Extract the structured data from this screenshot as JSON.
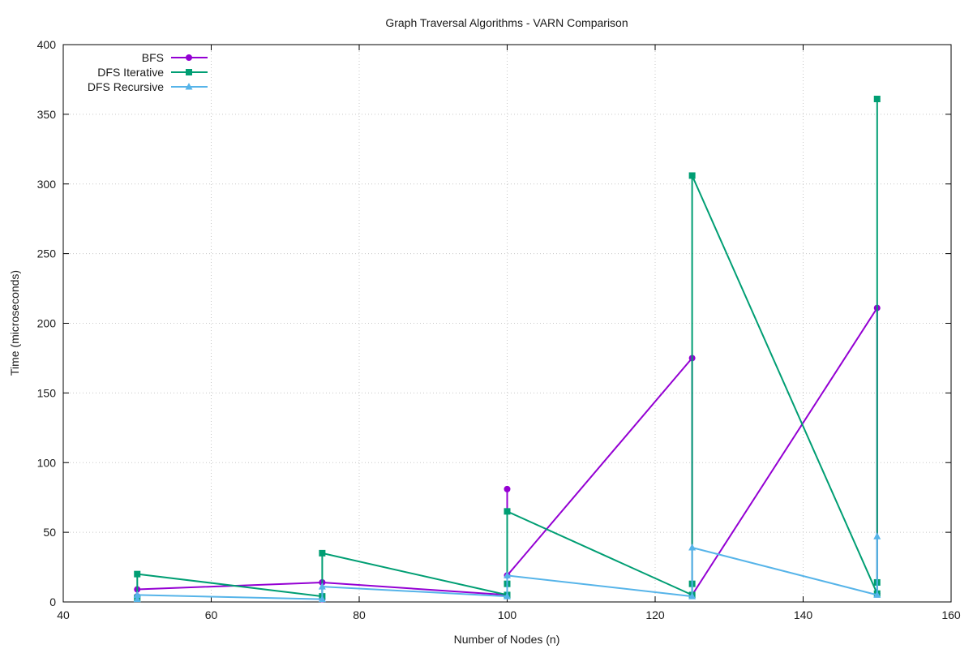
{
  "chart_data": {
    "type": "line",
    "title": "Graph Traversal Algorithms - VARN Comparison",
    "xlabel": "Number of Nodes (n)",
    "ylabel": "Time (microseconds)",
    "xlim": [
      40,
      160
    ],
    "ylim": [
      0,
      400
    ],
    "xticks": [
      40,
      60,
      80,
      100,
      120,
      140,
      160
    ],
    "yticks": [
      0,
      50,
      100,
      150,
      200,
      250,
      300,
      350,
      400
    ],
    "grid": true,
    "legend_position": "top-left",
    "series": [
      {
        "name": "BFS",
        "color": "#9400d3",
        "marker": "circle",
        "points": [
          [
            50,
            4
          ],
          [
            50,
            9
          ],
          [
            75,
            14
          ],
          [
            75,
            2
          ],
          [
            75,
            14
          ],
          [
            100,
            5
          ],
          [
            100,
            81
          ],
          [
            100,
            19
          ],
          [
            125,
            175
          ],
          [
            125,
            5
          ],
          [
            150,
            211
          ],
          [
            150,
            6
          ]
        ]
      },
      {
        "name": "DFS Iterative",
        "color": "#009e73",
        "marker": "square",
        "points": [
          [
            50,
            3
          ],
          [
            50,
            20
          ],
          [
            75,
            4
          ],
          [
            75,
            35
          ],
          [
            100,
            5
          ],
          [
            100,
            13
          ],
          [
            100,
            65
          ],
          [
            125,
            5
          ],
          [
            125,
            13
          ],
          [
            125,
            306
          ],
          [
            150,
            6
          ],
          [
            150,
            14
          ],
          [
            150,
            361
          ]
        ]
      },
      {
        "name": "DFS Recursive",
        "color": "#56b4e9",
        "marker": "triangle",
        "points": [
          [
            50,
            2
          ],
          [
            50,
            5
          ],
          [
            75,
            2
          ],
          [
            75,
            11
          ],
          [
            100,
            4
          ],
          [
            100,
            19
          ],
          [
            125,
            4
          ],
          [
            125,
            39
          ],
          [
            150,
            5
          ],
          [
            150,
            47
          ]
        ]
      }
    ]
  }
}
